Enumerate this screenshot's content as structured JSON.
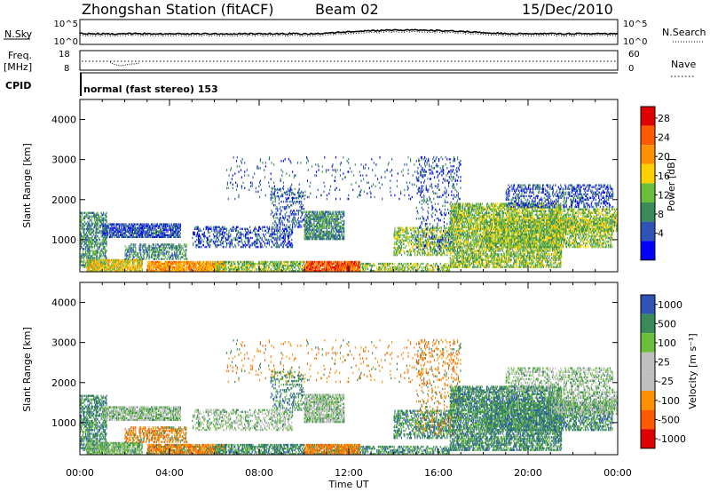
{
  "header": {
    "station": "Zhongshan Station (fitACF)",
    "beam": "Beam 02",
    "date": "15/Dec/2010"
  },
  "top_panel": {
    "left_label": "N.Sky",
    "right_label": "N.Search",
    "left_ticks": [
      "10^5",
      "10^0"
    ],
    "right_ticks": [
      "10^5",
      "10^0"
    ]
  },
  "freq_panel": {
    "left_label_1": "Freq.",
    "left_label_2": "[MHz]",
    "left_ticks": [
      "18",
      "8"
    ],
    "right_ticks": [
      "60",
      "0"
    ],
    "right_label": "Nave"
  },
  "cpid_panel": {
    "label": "CPID",
    "mode_text": "normal (fast stereo) 153"
  },
  "colors": {
    "power": [
      "#0000ff",
      "#2e55b5",
      "#3a8a5a",
      "#6abf3a",
      "#ffd000",
      "#ff9000",
      "#ff5a00",
      "#e00000"
    ],
    "velocity": [
      "#e00000",
      "#ff5a00",
      "#ff9000",
      "#bfbfbf",
      "#bfbfbf",
      "#6abf3a",
      "#3a8a5a",
      "#2e55b5"
    ]
  },
  "chart_data": [
    {
      "type": "heatmap",
      "name": "power",
      "ylabel": "Slant Range [km]",
      "y_ticks": [
        "1000",
        "2000",
        "3000",
        "4000"
      ],
      "ylim": [
        200,
        4500
      ],
      "x_ticks": [
        "00:00",
        "04:00",
        "08:00",
        "12:00",
        "16:00",
        "20:00",
        "00:00"
      ],
      "colorbar_label": "Power [dB]",
      "colorbar_ticks": [
        "4",
        "8",
        "12",
        "16",
        "20",
        "24",
        "28"
      ]
    },
    {
      "type": "heatmap",
      "name": "velocity",
      "ylabel": "Slant Range [km]",
      "y_ticks": [
        "1000",
        "2000",
        "3000",
        "4000"
      ],
      "ylim": [
        200,
        4500
      ],
      "x_ticks": [
        "00:00",
        "04:00",
        "08:00",
        "12:00",
        "16:00",
        "20:00",
        "00:00"
      ],
      "xlabel": "Time UT",
      "colorbar_label": "Velocity [m s⁻¹]",
      "colorbar_ticks": [
        "1000",
        "500",
        "100",
        "25",
        "-25",
        "-100",
        "-500",
        "-1000"
      ]
    }
  ]
}
